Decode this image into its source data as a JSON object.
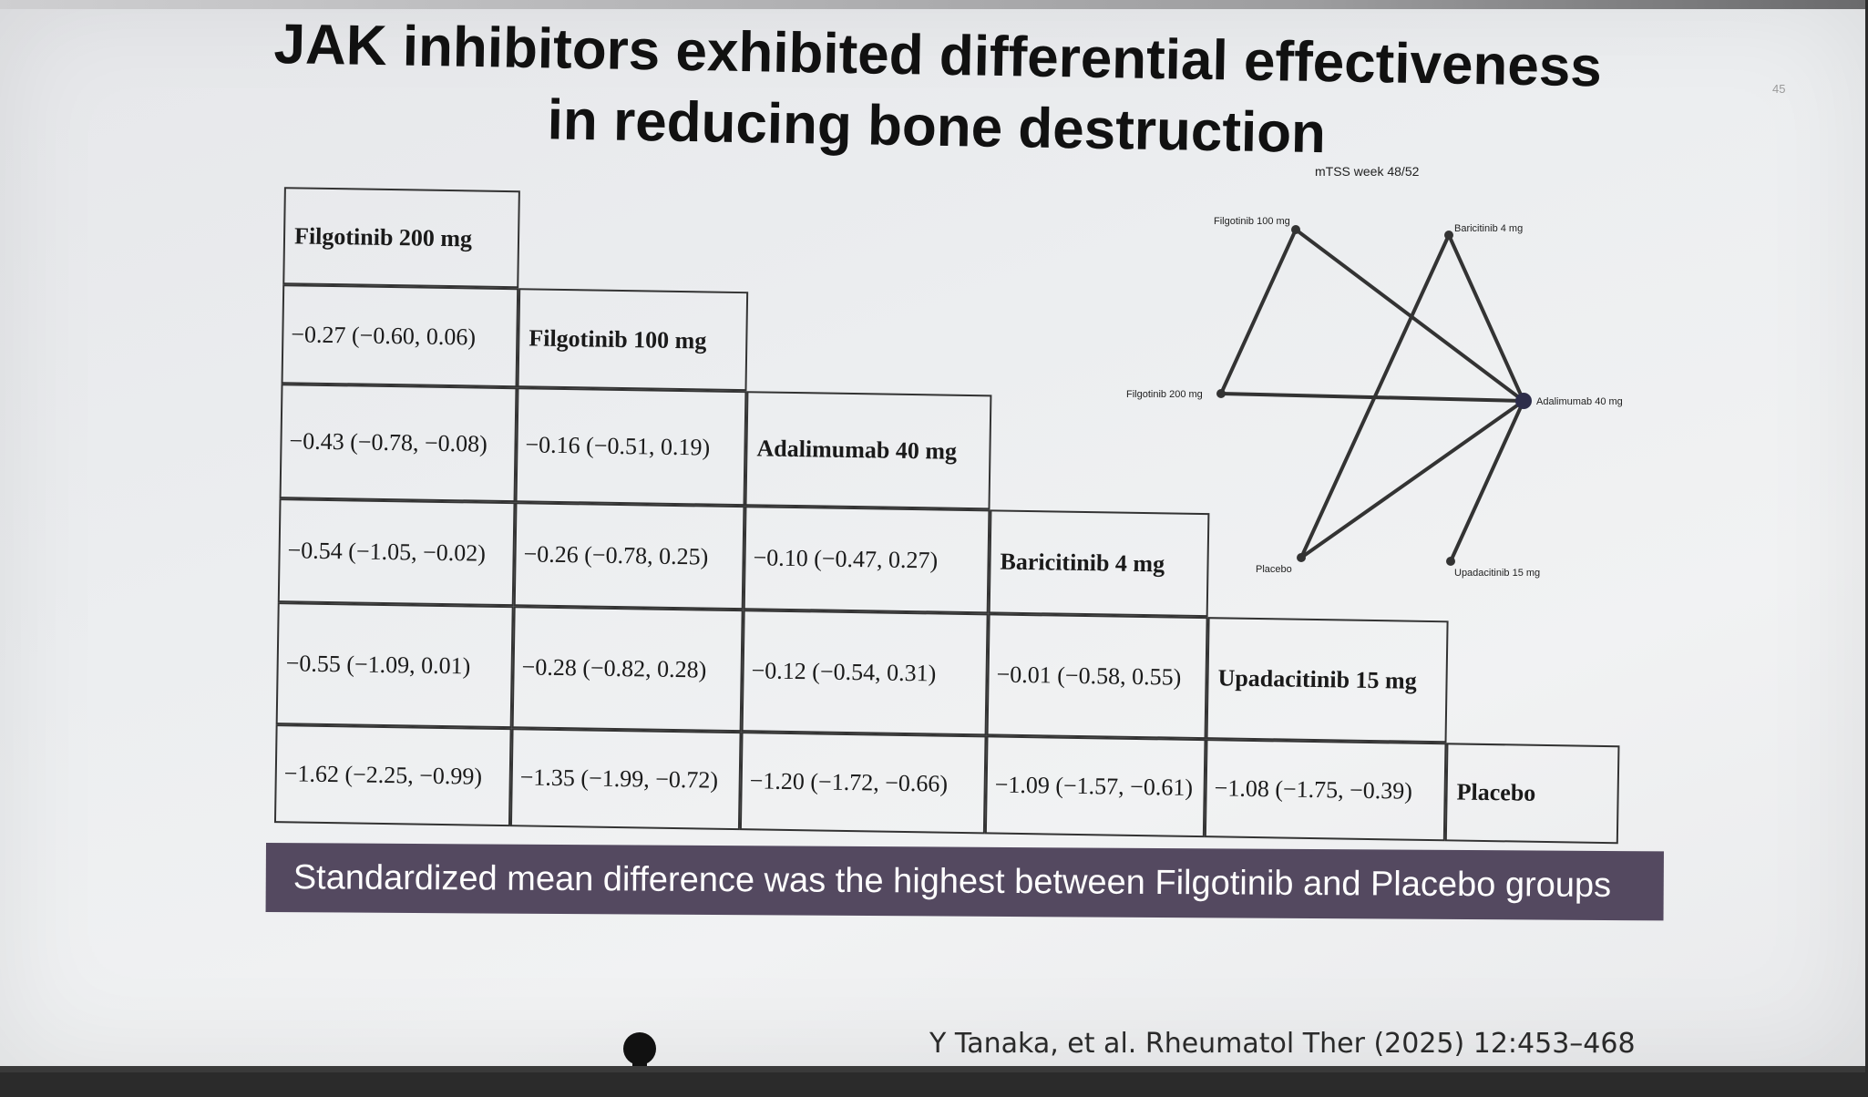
{
  "slide": {
    "title_line1": "JAK inhibitors exhibited differential effectiveness",
    "title_line2": "in reducing bone destruction",
    "slide_number": "45",
    "banner": "Standardized mean difference was the highest between Filgotinib and Placebo groups",
    "citation": "Y Tanaka, et al. Rheumatol Ther (2025) 12:453–468"
  },
  "league_table": {
    "treatments": [
      "Filgotinib 200 mg",
      "Filgotinib 100 mg",
      "Adalimumab 40 mg",
      "Baricitinib 4 mg",
      "Upadacitinib 15 mg",
      "Placebo"
    ],
    "rows": [
      [],
      [
        "−0.27 (−0.60, 0.06)"
      ],
      [
        "−0.43 (−0.78, −0.08)",
        "−0.16 (−0.51, 0.19)"
      ],
      [
        "−0.54 (−1.05, −0.02)",
        "−0.26 (−0.78, 0.25)",
        "−0.10 (−0.47, 0.27)"
      ],
      [
        "−0.55 (−1.09, 0.01)",
        "−0.28 (−0.82, 0.28)",
        "−0.12 (−0.54, 0.31)",
        "−0.01 (−0.58, 0.55)"
      ],
      [
        "−1.62 (−2.25, −0.99)",
        "−1.35 (−1.99, −0.72)",
        "−1.20 (−1.72, −0.66)",
        "−1.09 (−1.57, −0.61)",
        "−1.08 (−1.75, −0.39)"
      ]
    ]
  },
  "network": {
    "title": "mTSS week 48/52",
    "nodes": [
      {
        "id": "fil100",
        "label": "Filgotinib 100 mg"
      },
      {
        "id": "bar4",
        "label": "Baricitinib 4 mg"
      },
      {
        "id": "fil200",
        "label": "Filgotinib 200 mg"
      },
      {
        "id": "ada40",
        "label": "Adalimumab 40 mg"
      },
      {
        "id": "pbo",
        "label": "Placebo"
      },
      {
        "id": "upa15",
        "label": "Upadacitinib 15 mg"
      }
    ],
    "edges": [
      [
        "fil100",
        "fil200"
      ],
      [
        "fil100",
        "ada40"
      ],
      [
        "fil200",
        "ada40"
      ],
      [
        "bar4",
        "ada40"
      ],
      [
        "bar4",
        "pbo"
      ],
      [
        "ada40",
        "pbo"
      ],
      [
        "ada40",
        "upa15"
      ]
    ]
  }
}
